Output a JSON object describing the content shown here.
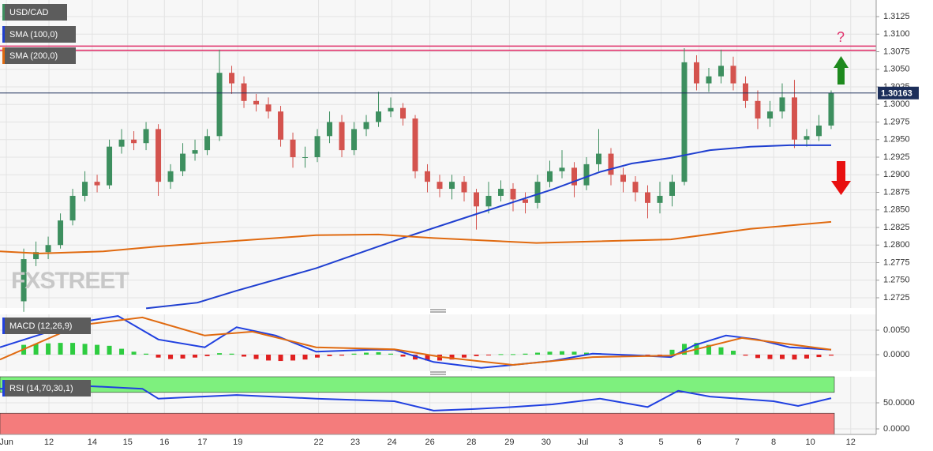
{
  "chart_data": [
    {
      "type": "candlestick",
      "title": "USD/CAD",
      "watermark": "FXSTREET",
      "annotation": "?",
      "up_color": "#3d8f5f",
      "down_color": "#d4534e",
      "open": [
        1.272,
        1.278,
        1.279,
        1.28,
        1.2835,
        1.287,
        1.289,
        1.2885,
        1.294,
        1.295,
        1.2945,
        1.2965,
        1.289,
        1.2905,
        1.293,
        1.2935,
        1.2955,
        1.3045,
        1.303,
        1.3005,
        1.3,
        1.299,
        1.295,
        1.2925,
        1.2925,
        1.2955,
        1.2975,
        1.2935,
        1.2965,
        1.2975,
        1.299,
        1.2995,
        1.298,
        1.2905,
        1.289,
        1.288,
        1.289,
        1.2875,
        1.2855,
        1.287,
        1.288,
        1.2865,
        1.286,
        1.289,
        1.2905,
        1.291,
        1.2885,
        1.2915,
        1.293,
        1.29,
        1.289,
        1.2875,
        1.286,
        1.287,
        1.289,
        1.306,
        1.303,
        1.304,
        1.3055,
        1.303,
        1.3005,
        1.298,
        1.299,
        1.301,
        1.295,
        1.2955,
        1.297
      ],
      "high": [
        1.2795,
        1.2805,
        1.2812,
        1.2845,
        1.288,
        1.2905,
        1.29,
        1.295,
        1.2965,
        1.2962,
        1.2975,
        1.2972,
        1.2915,
        1.2945,
        1.295,
        1.2965,
        1.3078,
        1.3055,
        1.304,
        1.3015,
        1.301,
        1.2998,
        1.296,
        1.294,
        1.2965,
        1.299,
        1.2985,
        1.2975,
        1.2985,
        1.3018,
        1.301,
        1.3002,
        1.2985,
        1.2915,
        1.29,
        1.29,
        1.2898,
        1.288,
        1.289,
        1.2892,
        1.2888,
        1.2875,
        1.29,
        1.292,
        1.2935,
        1.2918,
        1.2925,
        1.2965,
        1.2938,
        1.291,
        1.2898,
        1.2885,
        1.289,
        1.29,
        1.308,
        1.307,
        1.3052,
        1.3078,
        1.3068,
        1.304,
        1.302,
        1.3005,
        1.303,
        1.3035,
        1.2965,
        1.2985,
        1.302
      ],
      "low": [
        1.2705,
        1.277,
        1.278,
        1.2795,
        1.2828,
        1.2862,
        1.2875,
        1.288,
        1.293,
        1.2935,
        1.2935,
        1.287,
        1.288,
        1.2898,
        1.292,
        1.2928,
        1.2948,
        1.3015,
        1.2995,
        1.299,
        1.298,
        1.294,
        1.291,
        1.291,
        1.2918,
        1.2945,
        1.2925,
        1.2928,
        1.2955,
        1.2968,
        1.2982,
        1.297,
        1.2895,
        1.2875,
        1.2868,
        1.2865,
        1.2862,
        1.2822,
        1.2845,
        1.2862,
        1.2848,
        1.2845,
        1.2852,
        1.2882,
        1.2895,
        1.2868,
        1.2878,
        1.2905,
        1.2885,
        1.2875,
        1.2862,
        1.2838,
        1.2845,
        1.2855,
        1.2885,
        1.302,
        1.3018,
        1.303,
        1.302,
        1.2995,
        1.2965,
        1.2968,
        1.298,
        1.2938,
        1.294,
        1.2948,
        1.2965
      ],
      "close": [
        1.278,
        1.279,
        1.28,
        1.2835,
        1.287,
        1.289,
        1.2885,
        1.294,
        1.295,
        1.2945,
        1.2965,
        1.289,
        1.2905,
        1.293,
        1.2935,
        1.2955,
        1.3045,
        1.303,
        1.3005,
        1.3,
        1.299,
        1.295,
        1.2925,
        1.2925,
        1.2955,
        1.2975,
        1.2935,
        1.2965,
        1.2975,
        1.299,
        1.2995,
        1.298,
        1.2905,
        1.289,
        1.288,
        1.289,
        1.2875,
        1.2855,
        1.287,
        1.288,
        1.2865,
        1.286,
        1.289,
        1.2905,
        1.291,
        1.2885,
        1.2915,
        1.293,
        1.29,
        1.289,
        1.2875,
        1.286,
        1.287,
        1.289,
        1.306,
        1.303,
        1.304,
        1.3055,
        1.303,
        1.3005,
        1.298,
        1.299,
        1.301,
        1.295,
        1.2955,
        1.297,
        1.3016
      ],
      "series": [
        {
          "name": "SMA (100,0)",
          "color": "#1f3fd0",
          "x": [
            10,
            14.2,
            17.4,
            23.9,
            30.3,
            36.8,
            43.2,
            47.1,
            49.7,
            52.9,
            56.1,
            59.4,
            62.6,
            66
          ],
          "values": [
            1.271,
            1.2718,
            1.2735,
            1.2767,
            1.2806,
            1.2843,
            1.2879,
            1.2904,
            1.2916,
            1.2924,
            1.2935,
            1.294,
            1.2942,
            1.2942
          ]
        },
        {
          "name": "SMA (200,0)",
          "color": "#e06a10",
          "x": [
            -1.94,
            1.3,
            6.5,
            11,
            17.4,
            23.9,
            29,
            33.5,
            41.9,
            52.9,
            59.4,
            66
          ],
          "values": [
            1.2791,
            1.2788,
            1.2791,
            1.2798,
            1.2806,
            1.2814,
            1.2815,
            1.281,
            1.2803,
            1.2808,
            1.2823,
            1.2833
          ]
        }
      ],
      "levels": [
        1.3083,
        1.3077
      ],
      "level_color": "#e0306a",
      "current_price": 1.30163,
      "current_color": "#1c2e5a",
      "xlim": [
        -1.94,
        69.68
      ],
      "ylim": [
        1.27104,
        1.31486
      ],
      "yticks": [
        1.2725,
        {
          "value": 1.275,
          "label": "1.2750"
        },
        1.2775,
        {
          "value": 1.28,
          "label": "1.2800"
        },
        1.2825,
        {
          "value": 1.285,
          "label": "1.2850"
        },
        1.2875,
        {
          "value": 1.29,
          "label": "1.2900"
        },
        1.2925,
        {
          "value": 1.295,
          "label": "1.2950"
        },
        1.2975,
        {
          "value": 1.3,
          "label": "1.3000"
        },
        1.3025,
        {
          "value": 1.305,
          "label": "1.3050"
        },
        1.3075,
        {
          "value": 1.31,
          "label": "1.3100"
        },
        1.3125
      ],
      "xticks": [
        {
          "value": -1.42,
          "label": "Jun"
        },
        {
          "value": 2.06,
          "label": "12"
        },
        {
          "value": 5.6,
          "label": "14"
        },
        {
          "value": 8.5,
          "label": "15"
        },
        {
          "value": 11.5,
          "label": "16"
        },
        {
          "value": 14.6,
          "label": "17"
        },
        {
          "value": 17.5,
          "label": "19"
        },
        {
          "value": 24.1,
          "label": "22"
        },
        {
          "value": 27.1,
          "label": "23"
        },
        {
          "value": 30.1,
          "label": "24"
        },
        {
          "value": 33.2,
          "label": "26"
        },
        {
          "value": 36.6,
          "label": "28"
        },
        {
          "value": 39.7,
          "label": "29"
        },
        {
          "value": 42.7,
          "label": "30"
        },
        {
          "value": 45.7,
          "label": "Jul"
        },
        {
          "value": 48.8,
          "label": "3"
        },
        {
          "value": 52.1,
          "label": "5"
        },
        {
          "value": 55.2,
          "label": "6"
        },
        {
          "value": 58.3,
          "label": "7"
        },
        {
          "value": 61.3,
          "label": "8"
        },
        {
          "value": 64.3,
          "label": "10"
        },
        {
          "value": 67.6,
          "label": "12"
        }
      ],
      "grid": true
    },
    {
      "type": "macd",
      "title": "MACD (12,26,9)",
      "up_color": "#2ecc40",
      "down_color": "#e02020",
      "histogram": [
        0.002,
        0.0022,
        0.0023,
        0.0024,
        0.0024,
        0.0022,
        0.002,
        0.0018,
        0.0012,
        0.0006,
        0.0002,
        -0.0006,
        -0.0009,
        -0.0008,
        -0.0006,
        -0.0003,
        0.0003,
        0.0002,
        -0.0004,
        -0.0009,
        -0.0012,
        -0.0013,
        -0.0012,
        -0.001,
        -0.0006,
        -0.0003,
        -0.0002,
        0.0002,
        0.0004,
        0.0005,
        0.0002,
        -0.0004,
        -0.001,
        -0.0012,
        -0.0012,
        -0.001,
        -0.0006,
        -0.0003,
        -0.0001,
        0.0001,
        0.0001,
        0.0002,
        0.0004,
        0.0006,
        0.0007,
        0.0006,
        0.0004,
        0.0003,
        0.0001,
        -0.0002,
        -0.0003,
        -0.0003,
        -0.0002,
        0.001,
        0.0022,
        0.0024,
        0.002,
        0.0015,
        0.0008,
        -0.0002,
        -0.0007,
        -0.0009,
        -0.0009,
        -0.001,
        -0.0008,
        -0.0005,
        -0.0002
      ],
      "series": [
        {
          "color": "#2040e0",
          "x": [
            -1.94,
            4.5,
            7.7,
            11,
            14.8,
            17.4,
            20.6,
            23.9,
            28.4,
            30.3,
            33.5,
            37.4,
            40,
            43.2,
            46.5,
            49.7,
            52.9,
            54.8,
            57.4,
            60,
            62.6,
            66
          ],
          "values": [
            0.0015,
            0.0066,
            0.0079,
            0.0031,
            0.0015,
            0.0056,
            0.0039,
            0.0006,
            0.001,
            0.001,
            -0.0015,
            -0.0027,
            -0.0021,
            -0.0013,
            0.0002,
            -0.0001,
            -0.0005,
            0.0019,
            0.0039,
            0.0031,
            0.0015,
            0.001
          ]
        },
        {
          "color": "#e06a10",
          "x": [
            -1.94,
            4.5,
            9.7,
            14.8,
            18.7,
            23.9,
            30.3,
            34.2,
            40,
            46.5,
            52.9,
            58.7,
            66
          ],
          "values": [
            -0.001,
            0.006,
            0.0076,
            0.0039,
            0.0047,
            0.0015,
            0.0011,
            -0.0005,
            -0.0021,
            -0.0005,
            -0.0002,
            0.0034,
            0.001
          ]
        }
      ],
      "ylim": [
        -0.00339,
        0.00823
      ],
      "yticks": [
        {
          "value": 0.005,
          "label": "0.0050"
        },
        {
          "value": 0,
          "label": "0.0000"
        }
      ]
    },
    {
      "type": "rsi",
      "title": "RSI (14,70,30,1)",
      "zones": [
        {
          "from": 70,
          "to": 100,
          "color": "#7ef07e"
        },
        {
          "from": -10.6,
          "to": 30,
          "color": "#f47c7c"
        }
      ],
      "series": [
        {
          "color": "#2040e0",
          "x": [
            -1.94,
            4.5,
            9.7,
            11,
            17.4,
            23.9,
            30.3,
            33.5,
            36.8,
            40,
            43.2,
            47.1,
            51,
            53.5,
            56.1,
            61.3,
            63.3,
            66
          ],
          "values": [
            77,
            83,
            77,
            58,
            65,
            58,
            53,
            35,
            38,
            42,
            47,
            58,
            42,
            73,
            62,
            53,
            44,
            59
          ]
        }
      ],
      "ylim": [
        -10.6,
        100
      ],
      "yticks": [
        {
          "value": 50,
          "label": "50.0000"
        },
        {
          "value": 0,
          "label": "0.0000"
        }
      ]
    }
  ]
}
